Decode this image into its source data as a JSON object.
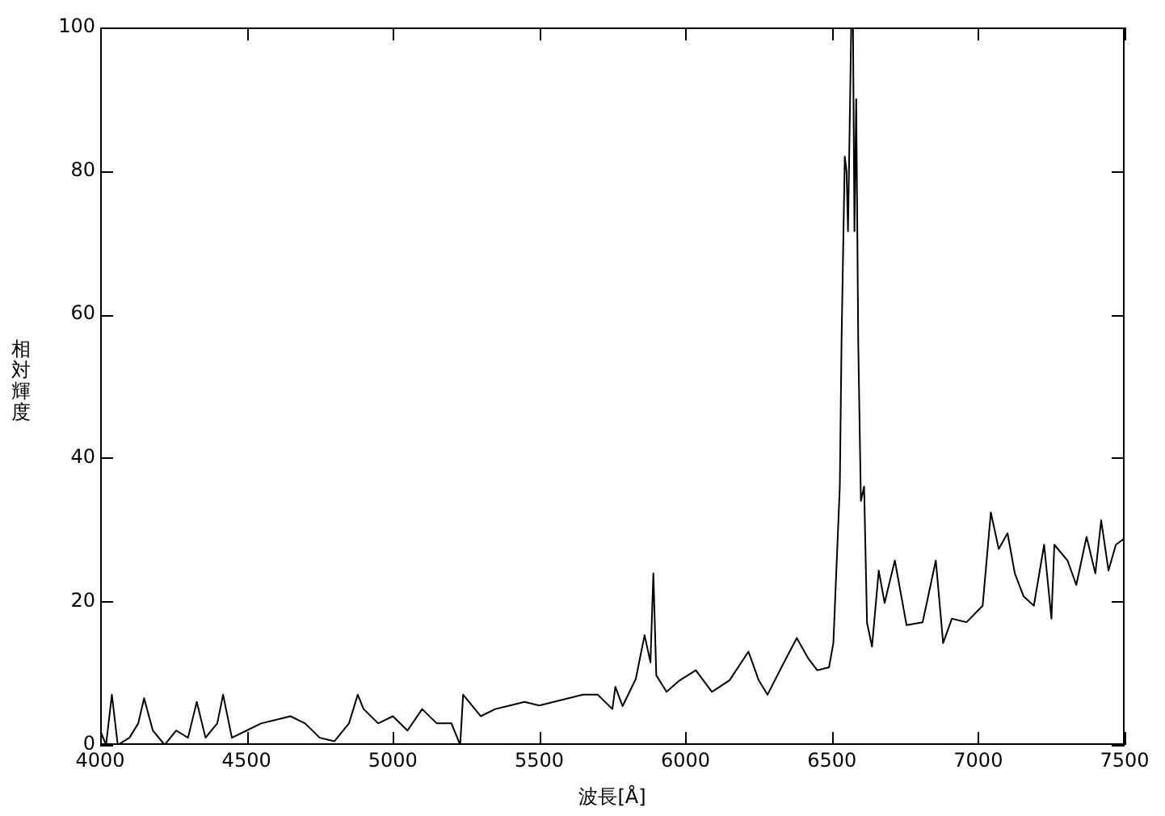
{
  "chart_data": {
    "type": "line",
    "xlabel": "波長[Å]",
    "ylabel": "相対輝度",
    "xlim": [
      4000,
      7500
    ],
    "ylim": [
      0,
      100
    ],
    "xticks": [
      4000,
      4500,
      5000,
      5500,
      6000,
      6500,
      7000,
      7500
    ],
    "yticks": [
      0,
      20,
      40,
      60,
      80,
      100
    ],
    "grid": false,
    "legend": false,
    "marker": "none",
    "line_style": "solid",
    "series": [
      {
        "color": "#000000",
        "x": [
          4000,
          4020,
          4040,
          4060,
          4100,
          4130,
          4150,
          4180,
          4220,
          4260,
          4300,
          4330,
          4360,
          4400,
          4420,
          4450,
          4500,
          4550,
          4600,
          4650,
          4700,
          4750,
          4800,
          4850,
          4880,
          4900,
          4950,
          5000,
          5050,
          5100,
          5150,
          5200,
          5230,
          5240,
          5300,
          5350,
          5400,
          5450,
          5500,
          5550,
          5600,
          5650,
          5700,
          5750,
          5760,
          5785,
          5830,
          5860,
          5880,
          5890,
          5900,
          5935,
          5980,
          6035,
          6090,
          6150,
          6215,
          6250,
          6280,
          6330,
          6380,
          6420,
          6450,
          6490,
          6505,
          6527,
          6533,
          6544,
          6550,
          6555,
          6566,
          6572,
          6577,
          6583,
          6590,
          6599,
          6610,
          6620,
          6637,
          6660,
          6680,
          6715,
          6755,
          6810,
          6855,
          6880,
          6910,
          6960,
          7015,
          7043,
          7070,
          7100,
          7125,
          7155,
          7190,
          7225,
          7250,
          7260,
          7305,
          7335,
          7370,
          7400,
          7420,
          7445,
          7470,
          7500
        ],
        "values": [
          2,
          0,
          7,
          0,
          1,
          3,
          6.5,
          2,
          0,
          2,
          1,
          6,
          1,
          3,
          7,
          1,
          2,
          3,
          3.5,
          4,
          3,
          1,
          0.5,
          3,
          7,
          5,
          3,
          4,
          2,
          5,
          3,
          3,
          0,
          7,
          4,
          5,
          5.5,
          6,
          5.5,
          6,
          6.5,
          7,
          7,
          5,
          8.1,
          5.4,
          9.2,
          15.3,
          11.5,
          23.9,
          9.7,
          7.4,
          9,
          10.4,
          7.4,
          9,
          13,
          9,
          7,
          11,
          14.9,
          12,
          10.4,
          10.8,
          14.2,
          36,
          56.5,
          82,
          80,
          71.6,
          100,
          100,
          71.6,
          90,
          56,
          34,
          36,
          17,
          13.7,
          24.3,
          19.8,
          25.7,
          16.7,
          17.1,
          25.7,
          14.2,
          17.6,
          17.1,
          19.4,
          32.4,
          27.3,
          29.5,
          23.9,
          20.7,
          19.4,
          27.9,
          17.6,
          27.9,
          25.7,
          22.3,
          29,
          23.9,
          31.3,
          24.3,
          27.9,
          28.8
        ]
      }
    ]
  }
}
